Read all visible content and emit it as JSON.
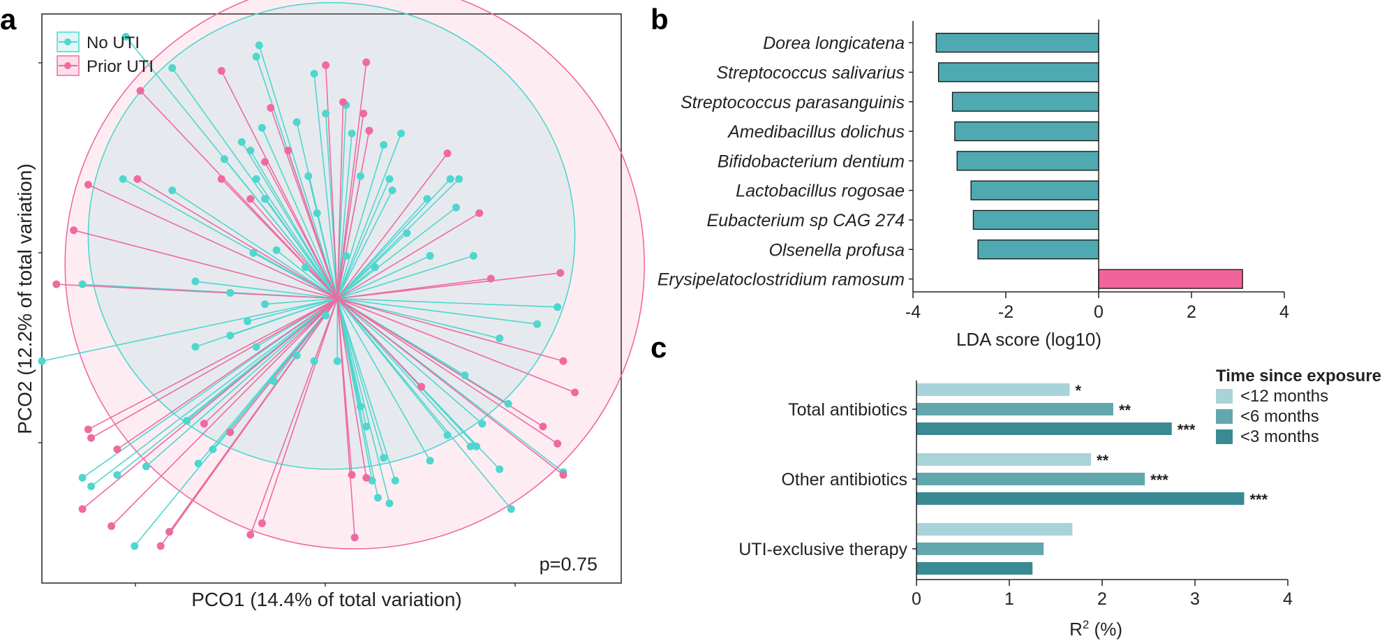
{
  "colors": {
    "no_uti": "#4fd6cf",
    "prior_uti": "#ef6aa0",
    "lda_negative": "#4ea9b1",
    "lda_positive": "#f0649a",
    "lt12": "#a8d3d8",
    "lt6": "#62a7ae",
    "lt3": "#3a8a94"
  },
  "chart_data": [
    {
      "panel": "a",
      "type": "scatter",
      "xlabel": "PCO1 (14.4% of total variation)",
      "ylabel": "PCO2 (12.2% of total variation)",
      "annotation": "p=0.75",
      "xlim": [
        -1.0,
        1.0
      ],
      "ylim": [
        -1.0,
        1.0
      ],
      "legend": {
        "position": "top-left",
        "entries": [
          "No UTI",
          "Prior UTI"
        ]
      },
      "series": [
        {
          "name": "No UTI",
          "centroid": [
            0.02,
            0.0
          ],
          "ellipse": {
            "cx": 0.0,
            "cy": 0.22,
            "rx": 0.84,
            "ry": 0.82
          },
          "points": [
            [
              -0.71,
              0.92
            ],
            [
              -0.55,
              0.81
            ],
            [
              -0.25,
              0.89
            ],
            [
              -0.26,
              0.85
            ],
            [
              -0.72,
              0.42
            ],
            [
              -0.55,
              0.38
            ],
            [
              -0.37,
              0.49
            ],
            [
              -0.31,
              0.55
            ],
            [
              -0.28,
              0.52
            ],
            [
              -0.24,
              0.6
            ],
            [
              -0.26,
              0.42
            ],
            [
              -0.23,
              0.35
            ],
            [
              -0.12,
              0.62
            ],
            [
              -0.08,
              0.43
            ],
            [
              -0.06,
              0.79
            ],
            [
              -0.02,
              0.65
            ],
            [
              0.05,
              0.68
            ],
            [
              0.07,
              0.58
            ],
            [
              0.24,
              0.58
            ],
            [
              0.18,
              0.54
            ],
            [
              0.1,
              0.43
            ],
            [
              0.2,
              0.42
            ],
            [
              0.21,
              0.38
            ],
            [
              0.33,
              0.35
            ],
            [
              0.41,
              0.42
            ],
            [
              0.44,
              0.42
            ],
            [
              0.43,
              0.32
            ],
            [
              0.26,
              0.23
            ],
            [
              0.34,
              0.15
            ],
            [
              0.49,
              0.15
            ],
            [
              0.05,
              0.15
            ],
            [
              0.15,
              0.11
            ],
            [
              0.78,
              -0.03
            ],
            [
              0.71,
              -0.09
            ],
            [
              0.58,
              -0.14
            ],
            [
              0.46,
              -0.27
            ],
            [
              0.61,
              -0.37
            ],
            [
              0.52,
              -0.44
            ],
            [
              0.5,
              -0.52
            ],
            [
              0.8,
              -0.61
            ],
            [
              0.58,
              -0.6
            ],
            [
              0.48,
              -0.52
            ],
            [
              0.62,
              -0.74
            ],
            [
              0.4,
              -0.48
            ],
            [
              0.34,
              -0.57
            ],
            [
              0.22,
              -0.64
            ],
            [
              0.18,
              -0.56
            ],
            [
              0.14,
              -0.64
            ],
            [
              0.16,
              -0.7
            ],
            [
              0.2,
              -0.72
            ],
            [
              0.12,
              -0.45
            ],
            [
              0.1,
              -0.38
            ],
            [
              0.02,
              -0.22
            ],
            [
              -0.06,
              -0.22
            ],
            [
              -0.12,
              -0.2
            ],
            [
              -0.2,
              -0.29
            ],
            [
              -0.26,
              -0.17
            ],
            [
              -0.29,
              -0.08
            ],
            [
              -0.35,
              -0.13
            ],
            [
              -0.47,
              -0.17
            ],
            [
              -0.5,
              -0.43
            ],
            [
              -0.41,
              -0.53
            ],
            [
              -0.46,
              -0.58
            ],
            [
              -0.64,
              -0.59
            ],
            [
              -0.83,
              -0.66
            ],
            [
              -0.86,
              -0.63
            ],
            [
              -1.0,
              -0.22
            ],
            [
              -0.86,
              0.05
            ],
            [
              -0.47,
              0.06
            ],
            [
              -0.35,
              0.02
            ],
            [
              -0.23,
              -0.02
            ],
            [
              -0.09,
              0.11
            ],
            [
              -0.19,
              0.17
            ],
            [
              -0.27,
              0.16
            ],
            [
              -0.05,
              0.3
            ],
            [
              -0.02,
              -0.06
            ],
            [
              -0.68,
              -0.87
            ],
            [
              -0.74,
              -0.62
            ],
            [
              -0.56,
              -0.82
            ]
          ]
        },
        {
          "name": "Prior UTI",
          "centroid": [
            0.02,
            0.0
          ],
          "ellipse": {
            "cx": 0.08,
            "cy": 0.12,
            "rx": 1.0,
            "ry": 1.0
          },
          "points": [
            [
              -0.38,
              0.8
            ],
            [
              -0.02,
              0.82
            ],
            [
              0.04,
              0.69
            ],
            [
              0.11,
              0.65
            ],
            [
              0.12,
              0.83
            ],
            [
              0.13,
              0.59
            ],
            [
              -0.21,
              0.67
            ],
            [
              -0.15,
              0.52
            ],
            [
              -0.23,
              0.48
            ],
            [
              -0.38,
              0.42
            ],
            [
              -0.28,
              0.35
            ],
            [
              0.4,
              0.51
            ],
            [
              0.51,
              0.3
            ],
            [
              0.55,
              0.07
            ],
            [
              0.79,
              0.09
            ],
            [
              0.8,
              -0.22
            ],
            [
              0.84,
              -0.33
            ],
            [
              0.78,
              -0.51
            ],
            [
              0.8,
              -0.62
            ],
            [
              0.73,
              -0.45
            ],
            [
              0.31,
              -0.31
            ],
            [
              0.07,
              -0.62
            ],
            [
              0.12,
              -0.63
            ],
            [
              0.08,
              -0.84
            ],
            [
              -0.28,
              -0.83
            ],
            [
              -0.35,
              -0.47
            ],
            [
              -0.44,
              -0.44
            ],
            [
              -0.74,
              -0.53
            ],
            [
              -0.83,
              -0.49
            ],
            [
              -0.84,
              -0.46
            ],
            [
              -0.95,
              0.05
            ],
            [
              -0.89,
              0.24
            ],
            [
              -0.84,
              0.4
            ],
            [
              -0.66,
              0.73
            ],
            [
              -0.67,
              0.42
            ],
            [
              -0.24,
              -0.79
            ],
            [
              -0.56,
              -0.82
            ],
            [
              -0.59,
              -0.87
            ],
            [
              -0.86,
              -0.74
            ],
            [
              -0.76,
              -0.8
            ]
          ]
        }
      ]
    },
    {
      "panel": "b",
      "type": "bar",
      "orientation": "horizontal",
      "categories": [
        "Dorea longicatena",
        "Streptococcus salivarius",
        "Streptococcus parasanguinis",
        "Amedibacillus dolichus",
        "Bifidobacterium dentium",
        "Lactobacillus rogosae",
        "Eubacterium sp CAG 274",
        "Olsenella profusa",
        "Erysipelatoclostridium ramosum"
      ],
      "values": [
        -3.5,
        -3.45,
        -3.15,
        -3.1,
        -3.05,
        -2.75,
        -2.7,
        -2.6,
        3.1
      ],
      "xlabel": "LDA score (log10)",
      "xlim": [
        -4,
        4
      ],
      "xticks": [
        "-4",
        "-2",
        "0",
        "2",
        "4"
      ]
    },
    {
      "panel": "c",
      "type": "bar",
      "orientation": "horizontal",
      "categories": [
        "Total antibiotics",
        "Other antibiotics",
        "UTI-exclusive therapy"
      ],
      "series": [
        {
          "name": "<12 months",
          "values": [
            1.65,
            1.88,
            1.68
          ],
          "significance": [
            "*",
            "**",
            ""
          ]
        },
        {
          "name": "<6 months",
          "values": [
            2.12,
            2.46,
            1.37
          ],
          "significance": [
            "**",
            "***",
            ""
          ]
        },
        {
          "name": "<3 months",
          "values": [
            2.75,
            3.53,
            1.25
          ],
          "significance": [
            "***",
            "***",
            ""
          ]
        }
      ],
      "xlabel_main": "R",
      "xlabel_sup": "2",
      "xlabel_tail": " (%)",
      "xlim": [
        0,
        4
      ],
      "xticks": [
        "0",
        "1",
        "2",
        "3",
        "4"
      ],
      "legend": {
        "title": "Time since exposure",
        "position": "top-right"
      }
    }
  ],
  "panels": {
    "a": "a",
    "b": "b",
    "c": "c"
  }
}
